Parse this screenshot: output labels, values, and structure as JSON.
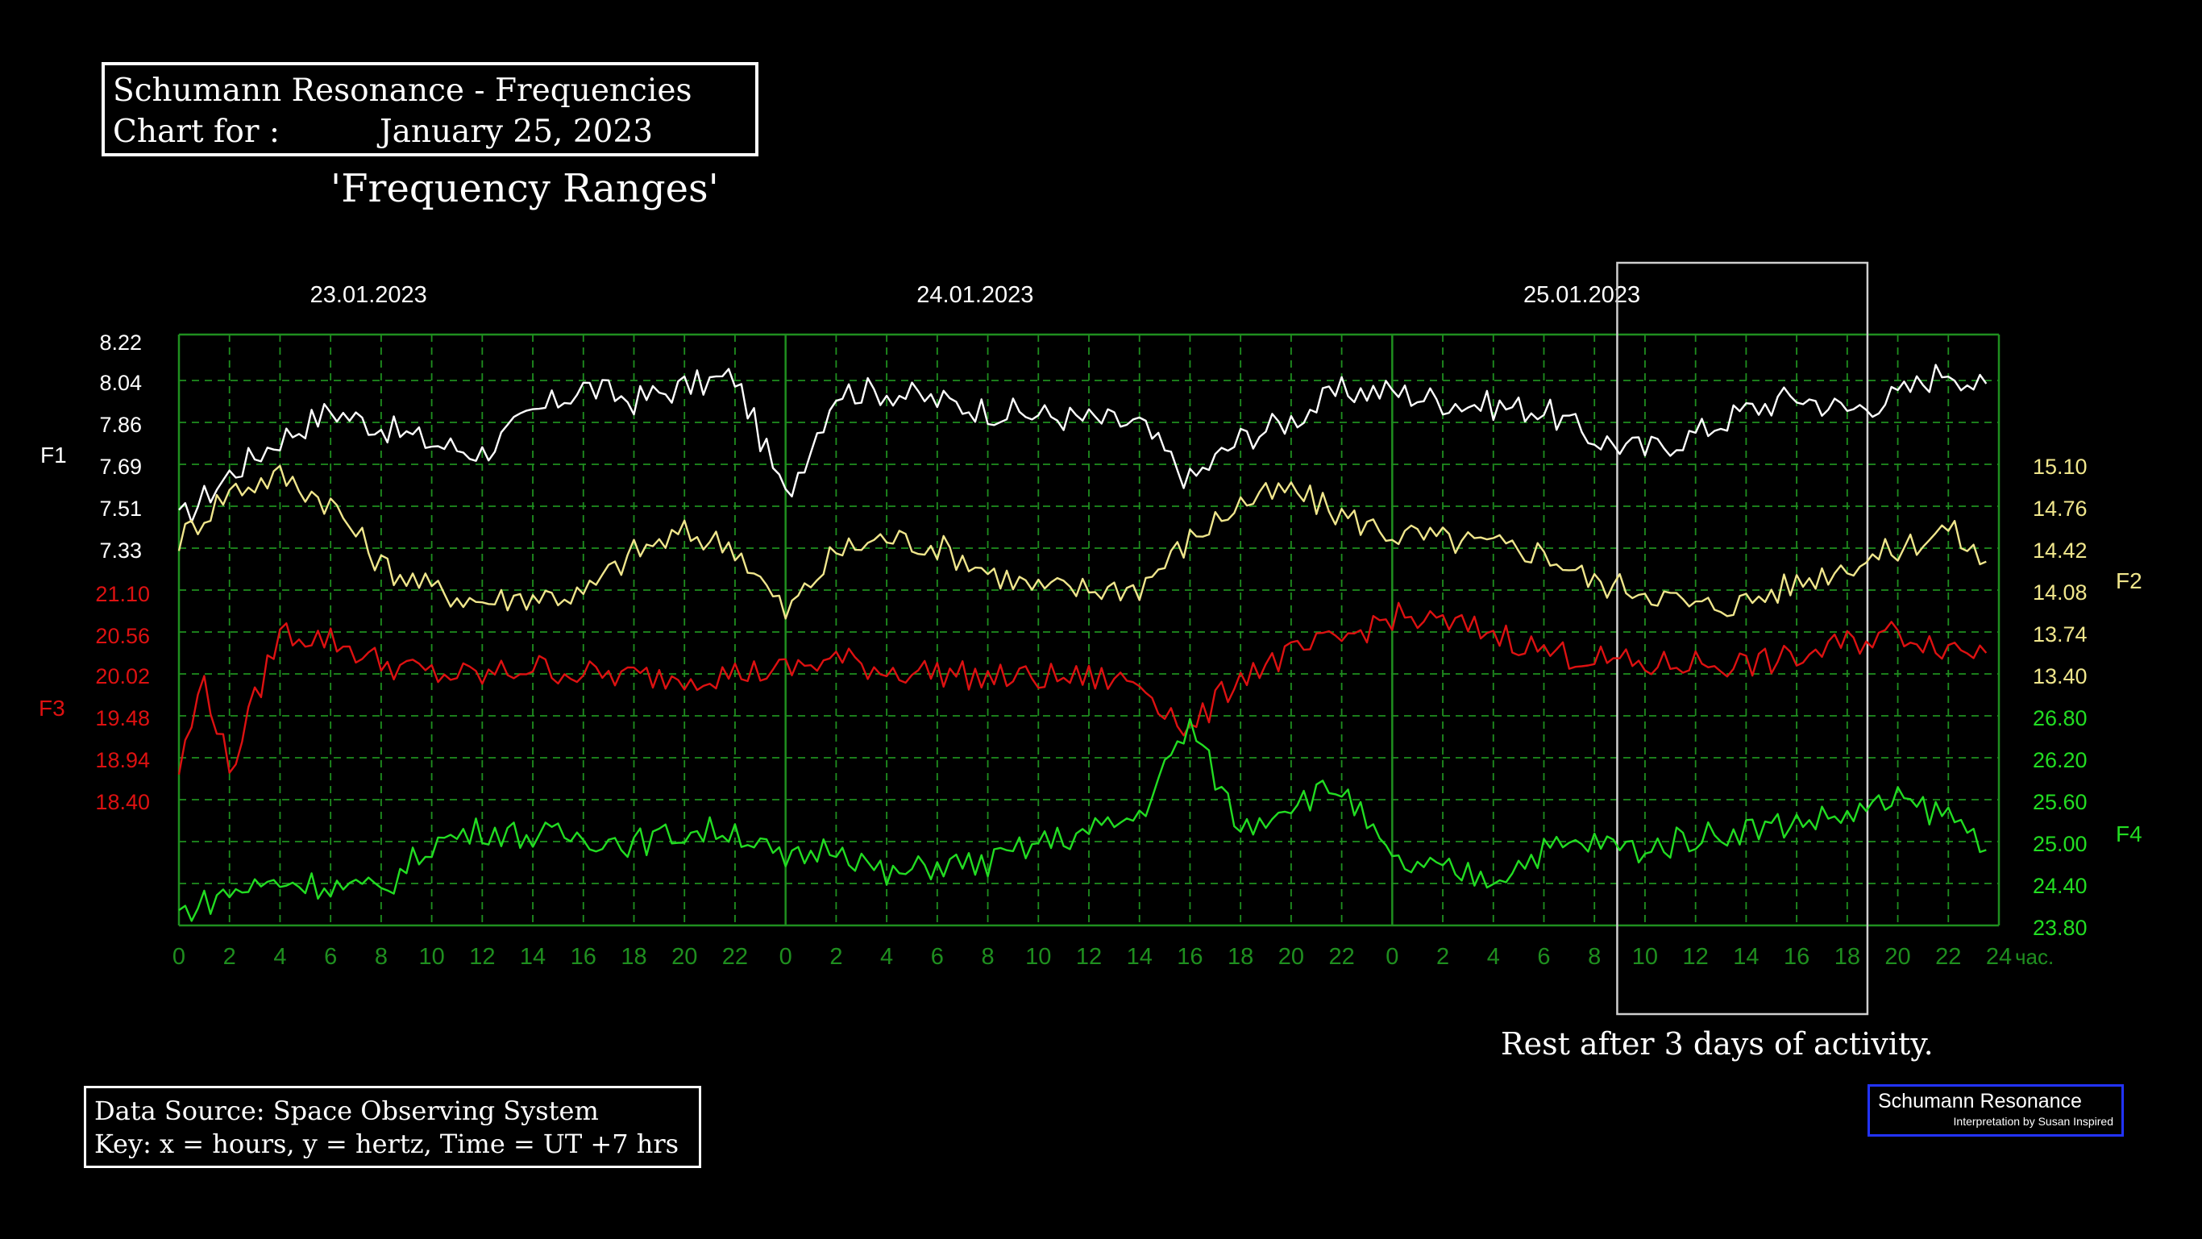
{
  "header": {
    "title_line1": "Schumann Resonance - Frequencies",
    "title_line2": "Chart for :          January 25, 2023",
    "subtitle": "'Frequency Ranges'"
  },
  "footer": {
    "source_line1": "Data Source: Space Observing System",
    "source_line2": "Key: x = hours, y = hertz, Time = UT +7 hrs",
    "note": "Rest after 3 days of activity.",
    "brand_line1": "Schumann Resonance",
    "brand_line2": "Interpretation by Susan Inspired"
  },
  "colors": {
    "background": "#000000",
    "grid": "#1f8f1f",
    "F1": "#ffffff",
    "F2": "#f0e68c",
    "F3": "#dd1111",
    "F4": "#22dd22"
  },
  "chart_data": {
    "type": "line",
    "day_labels": [
      "23.01.2023",
      "24.01.2023",
      "25.01.2023"
    ],
    "x_tick_labels": [
      "0",
      "2",
      "4",
      "6",
      "8",
      "10",
      "12",
      "14",
      "16",
      "18",
      "20",
      "22",
      "0",
      "2",
      "4",
      "6",
      "8",
      "10",
      "12",
      "14",
      "16",
      "18",
      "20",
      "22",
      "0",
      "2",
      "4",
      "6",
      "8",
      "10",
      "12",
      "14",
      "16",
      "18",
      "20",
      "22",
      "24"
    ],
    "x_unit": "час.",
    "highlight_day": "25.01.2023",
    "highlight_hours": [
      8.9,
      18.8
    ],
    "axes": {
      "F1": {
        "label": "F1",
        "side": "left",
        "ticks": [
          "8.22",
          "8.04",
          "7.86",
          "7.69",
          "7.51",
          "7.33"
        ]
      },
      "F3": {
        "label": "F3",
        "side": "left",
        "ticks": [
          "21.10",
          "20.56",
          "20.02",
          "19.48",
          "18.94",
          "18.40"
        ]
      },
      "F2": {
        "label": "F2",
        "side": "right",
        "ticks": [
          "15.10",
          "14.76",
          "14.42",
          "14.08",
          "13.74",
          "13.40"
        ]
      },
      "F4": {
        "label": "F4",
        "side": "right",
        "ticks": [
          "26.80",
          "26.20",
          "25.60",
          "25.00",
          "24.40",
          "23.80"
        ]
      }
    },
    "grid": true,
    "series": [
      {
        "name": "F1",
        "ylim": [
          7.33,
          8.22
        ],
        "x": [
          0,
          2,
          4,
          6,
          8,
          10,
          12,
          14,
          16,
          18,
          20,
          22,
          24,
          26,
          28,
          30,
          32,
          34,
          36,
          38,
          40,
          42,
          44,
          46,
          48,
          50,
          52,
          54,
          56,
          58,
          60,
          62,
          64,
          66,
          68,
          70,
          71.5
        ],
        "values": [
          7.45,
          7.65,
          7.8,
          7.92,
          7.85,
          7.78,
          7.74,
          7.9,
          8.02,
          7.96,
          8.02,
          8.06,
          7.55,
          8.0,
          8.0,
          7.96,
          7.92,
          7.9,
          7.88,
          7.86,
          7.62,
          7.8,
          7.88,
          8.0,
          8.0,
          7.96,
          7.94,
          7.92,
          7.8,
          7.75,
          7.82,
          7.92,
          7.98,
          7.92,
          7.98,
          8.1,
          8.0
        ]
      },
      {
        "name": "F2",
        "ylim": [
          13.4,
          15.1
        ],
        "x": [
          0,
          2,
          4,
          6,
          8,
          10,
          12,
          14,
          16,
          18,
          20,
          22,
          24,
          26,
          28,
          30,
          32,
          34,
          36,
          38,
          40,
          42,
          44,
          46,
          48,
          50,
          52,
          54,
          56,
          58,
          60,
          62,
          64,
          66,
          68,
          70,
          71.5
        ],
        "values": [
          14.5,
          14.9,
          15.02,
          14.8,
          14.3,
          14.1,
          14.0,
          14.05,
          14.05,
          14.4,
          14.55,
          14.45,
          13.9,
          14.4,
          14.52,
          14.45,
          14.25,
          14.1,
          14.1,
          14.12,
          14.5,
          14.8,
          14.9,
          14.7,
          14.55,
          14.5,
          14.45,
          14.4,
          14.15,
          14.1,
          13.95,
          14.0,
          14.15,
          14.3,
          14.42,
          14.6,
          14.3
        ]
      },
      {
        "name": "F3",
        "ylim": [
          18.4,
          21.1
        ],
        "x": [
          0,
          1,
          2,
          4,
          6,
          8,
          10,
          12,
          14,
          16,
          18,
          20,
          22,
          24,
          26,
          28,
          30,
          32,
          34,
          36,
          38,
          40,
          42,
          44,
          46,
          48,
          50,
          52,
          54,
          56,
          58,
          60,
          62,
          64,
          66,
          68,
          70,
          71.5
        ],
        "values": [
          18.8,
          20.0,
          18.8,
          20.6,
          20.5,
          20.2,
          20.05,
          20.02,
          20.15,
          20.05,
          20.02,
          20.02,
          20.06,
          20.1,
          20.25,
          20.1,
          20.08,
          20.0,
          20.0,
          20.0,
          19.95,
          19.3,
          20.05,
          20.3,
          20.5,
          20.8,
          20.7,
          20.6,
          20.35,
          20.25,
          20.15,
          20.2,
          20.18,
          20.25,
          20.45,
          20.6,
          20.4,
          20.35
        ]
      },
      {
        "name": "F4",
        "ylim": [
          23.8,
          26.8
        ],
        "x": [
          0,
          2,
          4,
          6,
          8,
          10,
          12,
          14,
          16,
          18,
          20,
          22,
          24,
          26,
          28,
          30,
          32,
          34,
          36,
          38,
          40,
          42,
          44,
          46,
          48,
          50,
          52,
          54,
          56,
          58,
          60,
          62,
          64,
          66,
          68,
          70,
          71.5
        ],
        "values": [
          24.0,
          24.3,
          24.45,
          24.4,
          24.3,
          25.0,
          25.2,
          25.1,
          25.1,
          25.0,
          25.15,
          25.2,
          24.7,
          25.0,
          24.5,
          24.7,
          24.7,
          25.0,
          25.15,
          25.4,
          26.7,
          25.2,
          25.6,
          25.8,
          24.7,
          24.6,
          24.5,
          24.9,
          25.0,
          24.9,
          25.1,
          25.2,
          25.3,
          25.4,
          25.6,
          25.4,
          25.0
        ]
      }
    ]
  }
}
